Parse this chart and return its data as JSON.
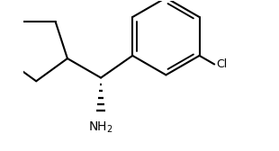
{
  "background_color": "#ffffff",
  "line_color": "#000000",
  "bond_lw": 1.5,
  "figsize": [
    3.1,
    1.68
  ],
  "dpi": 100,
  "nh2_label": "NH$_2$",
  "cl_label": "Cl",
  "xlim": [
    -1.7,
    3.4
  ],
  "ylim": [
    -1.6,
    1.7
  ]
}
